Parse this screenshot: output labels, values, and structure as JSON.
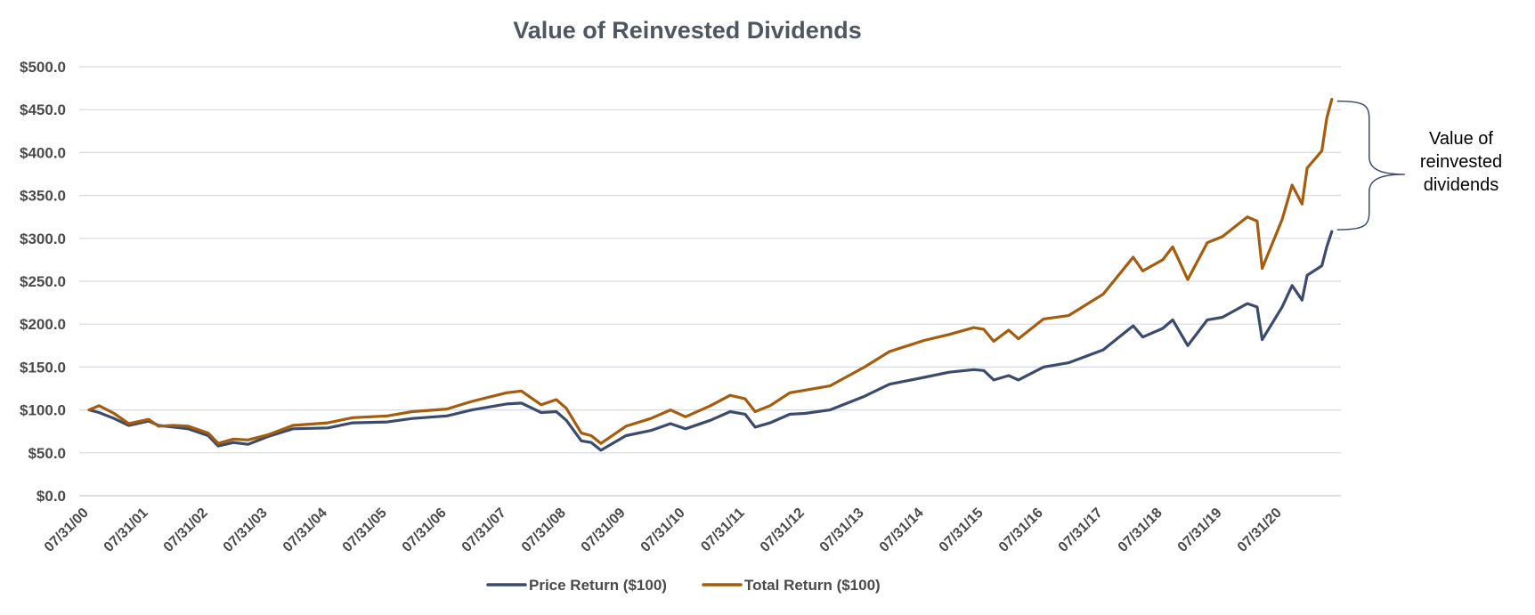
{
  "chart_data": {
    "type": "line",
    "title": "Value of Reinvested Dividends",
    "y_ticks": [
      "$0.0",
      "$50.0",
      "$100.0",
      "$150.0",
      "$200.0",
      "$250.0",
      "$300.0",
      "$350.0",
      "$400.0",
      "$450.0",
      "$500.0"
    ],
    "ylim": [
      0,
      500
    ],
    "x_ticks": [
      "07/31/00",
      "07/31/01",
      "07/31/02",
      "07/31/03",
      "07/31/04",
      "07/31/05",
      "07/31/06",
      "07/31/07",
      "07/31/08",
      "07/31/09",
      "07/31/10",
      "07/31/11",
      "07/31/12",
      "07/31/13",
      "07/31/14",
      "07/31/15",
      "07/31/16",
      "07/31/17",
      "07/31/18",
      "07/31/19",
      "07/31/20"
    ],
    "xlim": [
      "07/31/00",
      "05/31/21"
    ],
    "grid": true,
    "legend_position": "bottom",
    "series": [
      {
        "name": "Price Return ($100)",
        "color": "#3c4b6b",
        "points": [
          [
            "07/31/00",
            100
          ],
          [
            "09/30/00",
            97
          ],
          [
            "12/31/00",
            90
          ],
          [
            "03/31/01",
            82
          ],
          [
            "07/31/01",
            87
          ],
          [
            "09/30/01",
            82
          ],
          [
            "12/31/01",
            80
          ],
          [
            "03/31/02",
            78
          ],
          [
            "07/31/02",
            70
          ],
          [
            "09/30/02",
            58
          ],
          [
            "12/31/02",
            62
          ],
          [
            "03/31/03",
            60
          ],
          [
            "07/31/03",
            69
          ],
          [
            "12/31/03",
            78
          ],
          [
            "07/31/04",
            79
          ],
          [
            "12/31/04",
            85
          ],
          [
            "07/31/05",
            86
          ],
          [
            "12/31/05",
            90
          ],
          [
            "07/31/06",
            93
          ],
          [
            "12/31/06",
            100
          ],
          [
            "07/31/07",
            107
          ],
          [
            "10/31/07",
            108
          ],
          [
            "02/28/08",
            97
          ],
          [
            "05/31/08",
            98
          ],
          [
            "07/31/08",
            88
          ],
          [
            "10/31/08",
            64
          ],
          [
            "12/31/08",
            62
          ],
          [
            "02/28/09",
            53
          ],
          [
            "07/31/09",
            70
          ],
          [
            "12/31/09",
            76
          ],
          [
            "04/30/10",
            84
          ],
          [
            "07/31/10",
            78
          ],
          [
            "12/31/10",
            88
          ],
          [
            "04/30/11",
            98
          ],
          [
            "07/31/11",
            95
          ],
          [
            "09/30/11",
            80
          ],
          [
            "12/31/11",
            85
          ],
          [
            "04/30/12",
            95
          ],
          [
            "07/31/12",
            96
          ],
          [
            "12/31/12",
            100
          ],
          [
            "07/31/13",
            116
          ],
          [
            "12/31/13",
            130
          ],
          [
            "07/31/14",
            138
          ],
          [
            "12/31/14",
            144
          ],
          [
            "05/31/15",
            147
          ],
          [
            "07/31/15",
            146
          ],
          [
            "09/30/15",
            135
          ],
          [
            "12/31/15",
            140
          ],
          [
            "02/28/16",
            135
          ],
          [
            "07/31/16",
            150
          ],
          [
            "12/31/16",
            155
          ],
          [
            "07/31/17",
            170
          ],
          [
            "01/31/18",
            198
          ],
          [
            "03/31/18",
            185
          ],
          [
            "07/31/18",
            195
          ],
          [
            "09/30/18",
            205
          ],
          [
            "12/31/18",
            175
          ],
          [
            "04/30/19",
            205
          ],
          [
            "07/31/19",
            208
          ],
          [
            "12/31/19",
            224
          ],
          [
            "02/29/20",
            220
          ],
          [
            "03/31/20",
            182
          ],
          [
            "07/31/20",
            220
          ],
          [
            "09/30/20",
            245
          ],
          [
            "11/30/20",
            228
          ],
          [
            "12/31/20",
            257
          ],
          [
            "03/31/21",
            268
          ],
          [
            "04/30/21",
            290
          ],
          [
            "05/31/21",
            308
          ]
        ]
      },
      {
        "name": "Total Return ($100)",
        "color": "#a55c0c",
        "points": [
          [
            "07/31/00",
            100
          ],
          [
            "09/30/00",
            105
          ],
          [
            "12/31/00",
            96
          ],
          [
            "03/31/01",
            84
          ],
          [
            "07/31/01",
            89
          ],
          [
            "09/30/01",
            81
          ],
          [
            "12/31/01",
            82
          ],
          [
            "03/31/02",
            81
          ],
          [
            "07/31/02",
            73
          ],
          [
            "09/30/02",
            61
          ],
          [
            "12/31/02",
            66
          ],
          [
            "03/31/03",
            65
          ],
          [
            "07/31/03",
            71
          ],
          [
            "12/31/03",
            82
          ],
          [
            "07/31/04",
            85
          ],
          [
            "12/31/04",
            91
          ],
          [
            "07/31/05",
            93
          ],
          [
            "12/31/05",
            98
          ],
          [
            "07/31/06",
            101
          ],
          [
            "12/31/06",
            110
          ],
          [
            "07/31/07",
            120
          ],
          [
            "10/31/07",
            122
          ],
          [
            "02/28/08",
            106
          ],
          [
            "05/31/08",
            112
          ],
          [
            "07/31/08",
            102
          ],
          [
            "10/31/08",
            73
          ],
          [
            "12/31/08",
            70
          ],
          [
            "02/28/09",
            61
          ],
          [
            "07/31/09",
            81
          ],
          [
            "12/31/09",
            90
          ],
          [
            "04/30/10",
            100
          ],
          [
            "07/31/10",
            92
          ],
          [
            "12/31/10",
            105
          ],
          [
            "04/30/11",
            117
          ],
          [
            "07/31/11",
            113
          ],
          [
            "09/30/11",
            98
          ],
          [
            "12/31/11",
            105
          ],
          [
            "04/30/12",
            120
          ],
          [
            "07/31/12",
            123
          ],
          [
            "12/31/12",
            128
          ],
          [
            "07/31/13",
            150
          ],
          [
            "12/31/13",
            168
          ],
          [
            "07/31/14",
            181
          ],
          [
            "12/31/14",
            188
          ],
          [
            "05/31/15",
            196
          ],
          [
            "07/31/15",
            194
          ],
          [
            "09/30/15",
            180
          ],
          [
            "12/31/15",
            193
          ],
          [
            "02/28/16",
            183
          ],
          [
            "07/31/16",
            206
          ],
          [
            "12/31/16",
            210
          ],
          [
            "07/31/17",
            235
          ],
          [
            "01/31/18",
            278
          ],
          [
            "03/31/18",
            262
          ],
          [
            "07/31/18",
            275
          ],
          [
            "09/30/18",
            290
          ],
          [
            "12/31/18",
            252
          ],
          [
            "04/30/19",
            295
          ],
          [
            "07/31/19",
            302
          ],
          [
            "12/31/19",
            325
          ],
          [
            "02/29/20",
            320
          ],
          [
            "03/31/20",
            265
          ],
          [
            "07/31/20",
            322
          ],
          [
            "09/30/20",
            362
          ],
          [
            "11/30/20",
            340
          ],
          [
            "12/31/20",
            382
          ],
          [
            "03/31/21",
            402
          ],
          [
            "04/30/21",
            440
          ],
          [
            "05/31/21",
            462
          ]
        ]
      }
    ],
    "annotation": {
      "text_lines": [
        "Value of",
        "reinvested",
        "dividends"
      ],
      "from_value": 308,
      "to_value": 462,
      "at_x": "05/31/21",
      "color": "#3c4b6b"
    }
  }
}
